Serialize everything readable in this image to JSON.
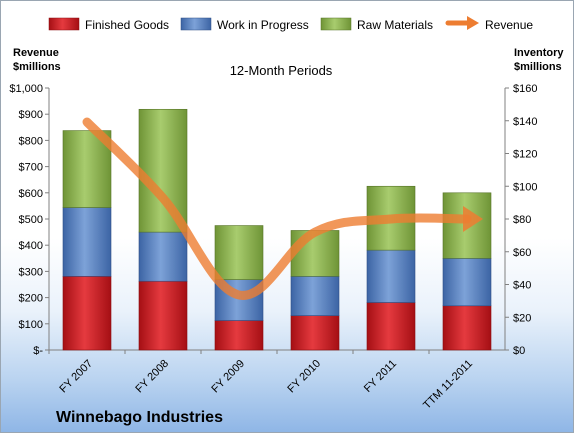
{
  "chart_data": {
    "type": "bar",
    "stacked": true,
    "subtitle": "12-Month Periods",
    "company": "Winnebago Industries",
    "categories": [
      "FY 2007",
      "FY 2008",
      "FY 2009",
      "FY 2010",
      "FY 2011",
      "TTM 11-2011"
    ],
    "left_axis": {
      "label_line1": "Revenue",
      "label_line2": "$millions",
      "min": 0,
      "max": 1000,
      "step": 100,
      "tick_labels": [
        "$-",
        "$100",
        "$200",
        "$300",
        "$400",
        "$500",
        "$600",
        "$700",
        "$800",
        "$900",
        "$1,000"
      ]
    },
    "right_axis": {
      "label_line1": "Inventory",
      "label_line2": "$millions",
      "min": 0,
      "max": 160,
      "step": 20,
      "tick_labels": [
        "$0",
        "$20",
        "$40",
        "$60",
        "$80",
        "$100",
        "$120",
        "$140",
        "$160"
      ]
    },
    "series": [
      {
        "name": "Finished Goods",
        "axis": "right",
        "color": "#c8181e",
        "values": [
          45,
          42,
          18,
          21,
          29,
          27
        ]
      },
      {
        "name": "Work in Progress",
        "axis": "right",
        "color": "#4f7cc0",
        "values": [
          42,
          30,
          25,
          24,
          32,
          29
        ]
      },
      {
        "name": "Raw Materials",
        "axis": "right",
        "color": "#88b04b",
        "values": [
          47,
          75,
          33,
          28,
          39,
          40
        ]
      }
    ],
    "line_series": {
      "name": "Revenue",
      "axis": "left",
      "color": "#ed7d31",
      "values": [
        870,
        580,
        210,
        450,
        500,
        500
      ]
    },
    "legend_position": "top",
    "grid": false
  }
}
